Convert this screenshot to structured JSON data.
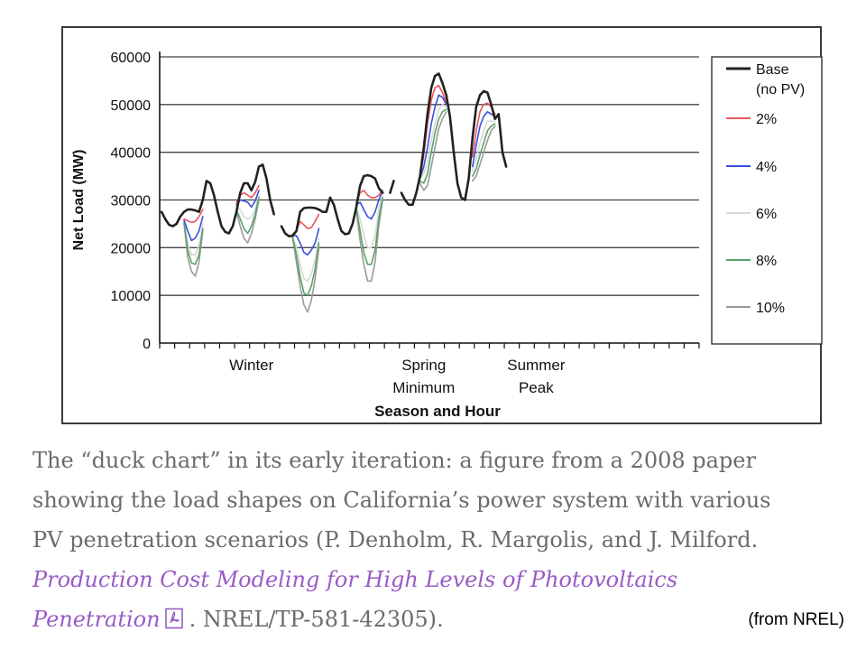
{
  "chart_data": {
    "type": "line",
    "title": "",
    "xlabel": "Season and Hour",
    "ylabel": "Net Load (MW)",
    "ylim": [
      0,
      60000
    ],
    "yticks": [
      "0",
      "10000",
      "20000",
      "30000",
      "40000",
      "50000",
      "60000"
    ],
    "x_category_labels": [
      {
        "label": "Winter",
        "hour": 24
      },
      {
        "label": "Spring\nMinimum",
        "hour": 70
      },
      {
        "label": "Summer\nPeak",
        "hour": 100
      }
    ],
    "grid": "horizontal",
    "legend_position": "right",
    "segments": [
      {
        "season": "Winter",
        "start_hour": 0,
        "hours": 48
      },
      {
        "season": "Spring Minimum",
        "start_hour": 48,
        "hours": 48
      },
      {
        "season": "Summer Peak",
        "start_hour": 96,
        "hours": 48
      }
    ],
    "series": [
      {
        "name": "Base (no PV)",
        "color": "#222222",
        "values": [
          27500,
          26000,
          24800,
          24500,
          25000,
          26500,
          27500,
          28000,
          28000,
          27800,
          27500,
          30000,
          34000,
          33500,
          31000,
          27500,
          24500,
          23300,
          23000,
          24500,
          27500,
          31500,
          33500,
          33500,
          32000,
          33800,
          37000,
          37400,
          34500,
          30000,
          27000,
          null,
          24500,
          23000,
          22400,
          22500,
          23500,
          27500,
          28300,
          28400,
          28400,
          28300,
          28000,
          27500,
          27500,
          30500,
          29000,
          26000,
          23500,
          22800,
          23000,
          25000,
          28500,
          33000,
          35000,
          35200,
          35000,
          34500,
          32500,
          31500,
          null,
          31500,
          34000,
          null,
          31500,
          30000,
          29000,
          29000,
          31500,
          35000,
          41000,
          48000,
          53500,
          56000,
          56500,
          54500,
          52000,
          47500,
          40000,
          33500,
          30500,
          30000,
          34500,
          43000,
          49500,
          52000,
          52800,
          52500,
          50000,
          47000,
          48000,
          40000,
          37000
        ]
      },
      {
        "name": "2%",
        "color": "#e8555a",
        "values": [
          null,
          null,
          null,
          null,
          null,
          null,
          26000,
          25600,
          25300,
          25500,
          26500,
          28000,
          null,
          null,
          null,
          null,
          null,
          null,
          null,
          null,
          29500,
          31000,
          31500,
          31000,
          30500,
          31500,
          33000,
          null,
          null,
          null,
          null,
          null,
          null,
          null,
          null,
          22800,
          23500,
          25500,
          24800,
          24000,
          24200,
          25500,
          27000,
          null,
          null,
          null,
          null,
          null,
          null,
          null,
          null,
          null,
          29500,
          31500,
          32000,
          31000,
          30500,
          30500,
          31000,
          32000,
          null,
          null,
          null,
          null,
          null,
          null,
          null,
          null,
          null,
          34500,
          39500,
          46000,
          51000,
          53500,
          54000,
          52500,
          50500,
          null,
          null,
          null,
          null,
          null,
          null,
          39000,
          44500,
          48500,
          50000,
          50300,
          49500,
          48000,
          null,
          null,
          null
        ]
      },
      {
        "name": "4%",
        "color": "#3b4fe0",
        "values": [
          null,
          null,
          null,
          null,
          null,
          null,
          25800,
          23500,
          21500,
          22000,
          23500,
          26500,
          null,
          null,
          null,
          null,
          null,
          null,
          null,
          null,
          29000,
          30000,
          29800,
          29500,
          28500,
          29800,
          32000,
          null,
          null,
          null,
          null,
          null,
          null,
          null,
          null,
          22600,
          22500,
          21000,
          19000,
          18500,
          19500,
          21000,
          24000,
          null,
          null,
          null,
          null,
          null,
          null,
          null,
          null,
          null,
          29000,
          29500,
          28000,
          26500,
          26000,
          27500,
          30000,
          32000,
          null,
          null,
          null,
          null,
          null,
          null,
          null,
          null,
          null,
          34500,
          37000,
          41000,
          46000,
          49500,
          52000,
          51500,
          50000,
          null,
          null,
          null,
          null,
          null,
          null,
          37000,
          41500,
          45500,
          47500,
          48500,
          48000,
          47500,
          null,
          null,
          null
        ]
      },
      {
        "name": "6%",
        "color": "#d8d8d8",
        "values": [
          null,
          null,
          null,
          null,
          null,
          null,
          25500,
          21000,
          18500,
          18500,
          20500,
          25000,
          null,
          null,
          null,
          null,
          null,
          null,
          null,
          null,
          28500,
          28000,
          26500,
          26000,
          26500,
          28000,
          31000,
          null,
          null,
          null,
          null,
          null,
          null,
          null,
          null,
          22400,
          20000,
          16500,
          13500,
          13000,
          14500,
          17500,
          22000,
          null,
          null,
          null,
          null,
          null,
          null,
          null,
          null,
          null,
          28500,
          26000,
          22500,
          20000,
          20000,
          22500,
          28000,
          31000,
          null,
          null,
          null,
          null,
          null,
          null,
          null,
          null,
          null,
          34500,
          35500,
          38000,
          42500,
          46000,
          49000,
          50000,
          49500,
          null,
          null,
          null,
          null,
          null,
          null,
          36000,
          38500,
          42000,
          44500,
          46500,
          46500,
          46500,
          null,
          null,
          null
        ]
      },
      {
        "name": "8%",
        "color": "#5aa36c",
        "values": [
          null,
          null,
          null,
          null,
          null,
          null,
          25300,
          19500,
          16800,
          16500,
          18500,
          24000,
          null,
          null,
          null,
          null,
          null,
          null,
          null,
          null,
          28000,
          26000,
          24000,
          23000,
          24500,
          27000,
          30500,
          null,
          null,
          null,
          null,
          null,
          null,
          null,
          null,
          22200,
          18500,
          14000,
          10500,
          10000,
          12000,
          15500,
          21000,
          null,
          null,
          null,
          null,
          null,
          null,
          null,
          null,
          null,
          28200,
          23500,
          19000,
          16500,
          16500,
          19500,
          26000,
          30500,
          null,
          null,
          null,
          null,
          null,
          null,
          null,
          null,
          null,
          34000,
          33500,
          35500,
          40000,
          44000,
          47000,
          48500,
          49000,
          null,
          null,
          null,
          null,
          null,
          null,
          35000,
          36500,
          39500,
          42000,
          44500,
          45500,
          46000,
          null,
          null,
          null
        ]
      },
      {
        "name": "10%",
        "color": "#9a9a9a",
        "values": [
          null,
          null,
          null,
          null,
          null,
          null,
          25000,
          18000,
          15000,
          14000,
          17000,
          23500,
          null,
          null,
          null,
          null,
          null,
          null,
          null,
          null,
          27500,
          24500,
          22000,
          21000,
          23000,
          26000,
          30000,
          null,
          null,
          null,
          null,
          null,
          null,
          null,
          null,
          22000,
          17000,
          12000,
          8000,
          6500,
          9000,
          13500,
          20000,
          null,
          null,
          null,
          null,
          null,
          null,
          null,
          null,
          null,
          27800,
          21500,
          16500,
          13000,
          13000,
          17000,
          24500,
          30000,
          null,
          null,
          null,
          null,
          null,
          null,
          null,
          null,
          null,
          33500,
          32000,
          33000,
          37000,
          41000,
          45000,
          47000,
          48500,
          null,
          null,
          null,
          null,
          null,
          null,
          34000,
          35000,
          37500,
          40000,
          42500,
          44500,
          45500,
          null,
          null,
          null
        ]
      }
    ]
  },
  "legend": {
    "entries": [
      {
        "label_line1": "Base",
        "label_line2": "(no PV)",
        "color": "#222222"
      },
      {
        "label_line1": "2%",
        "color": "#e8555a"
      },
      {
        "label_line1": "4%",
        "color": "#3b4fe0"
      },
      {
        "label_line1": "6%",
        "color": "#d8d8d8"
      },
      {
        "label_line1": "8%",
        "color": "#5aa36c"
      },
      {
        "label_line1": "10%",
        "color": "#9a9a9a"
      }
    ]
  },
  "caption": {
    "line1": "The “duck chart” in its early iteration: a figure from a 2008 paper",
    "line2": "showing the load shapes on California’s power system with various",
    "line3": "PV penetration scenarios (P. Denholm, R. Margolis, and J. Milford.",
    "link_line1": "Production Cost Modeling for High Levels of Photovoltaics",
    "link_line2": "Penetration",
    "line5_tail": ". NREL/TP-581-42305).",
    "link_color": "#9a5bc4",
    "text_color": "#6b6b6b"
  },
  "source_note": "(from NREL)",
  "icons": {
    "pdf": "pdf-file-icon"
  }
}
